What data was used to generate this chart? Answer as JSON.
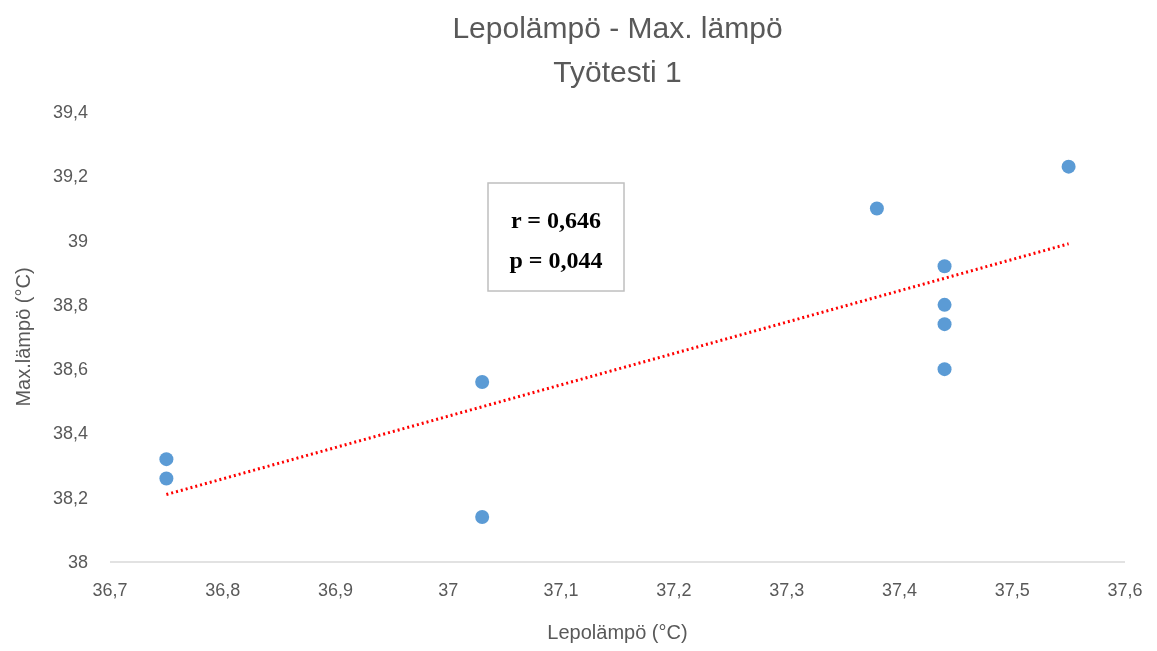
{
  "chart_data": {
    "type": "scatter",
    "title": "Lepolämpö - Max. lämpö",
    "subtitle": "Työtesti 1",
    "xlabel": "Lepolämpö (°C)",
    "ylabel": "Max.lämpö (°C)",
    "xlim": [
      36.7,
      37.6
    ],
    "xticks": [
      {
        "value": 36.7,
        "label": "36,7"
      },
      {
        "value": 36.8,
        "label": "36,8"
      },
      {
        "value": 36.9,
        "label": "36,9"
      },
      37,
      {
        "value": 37.1,
        "label": "37,1"
      },
      {
        "value": 37.2,
        "label": "37,2"
      },
      {
        "value": 37.3,
        "label": "37,3"
      },
      {
        "value": 37.4,
        "label": "37,4"
      },
      {
        "value": 37.5,
        "label": "37,5"
      },
      {
        "value": 37.6,
        "label": "37,6"
      }
    ],
    "ylim": [
      38,
      39.4
    ],
    "yticks": [
      38,
      {
        "value": 38.2,
        "label": "38,2"
      },
      {
        "value": 38.4,
        "label": "38,4"
      },
      {
        "value": 38.6,
        "label": "38,6"
      },
      {
        "value": 38.8,
        "label": "38,8"
      },
      39,
      {
        "value": 39.2,
        "label": "39,2"
      },
      {
        "value": 39.4,
        "label": "39,4"
      }
    ],
    "grid": false,
    "series": [
      {
        "type": "scatter",
        "color": "#5b9bd5",
        "marker": "circle",
        "x": [
          36.75,
          36.75,
          37.03,
          37.03,
          37.38,
          37.44,
          37.44,
          37.44,
          37.44,
          37.55
        ],
        "values": [
          38.32,
          38.26,
          38.56,
          38.14,
          39.1,
          38.92,
          38.8,
          38.74,
          38.6,
          39.23
        ]
      },
      {
        "type": "line",
        "color": "#ff0000",
        "line_style": "dotted",
        "marker": "none",
        "x": [
          36.75,
          37.55
        ],
        "values": [
          38.21,
          38.99
        ]
      }
    ],
    "annotations": [
      "r = 0,646",
      "p = 0,044"
    ]
  }
}
